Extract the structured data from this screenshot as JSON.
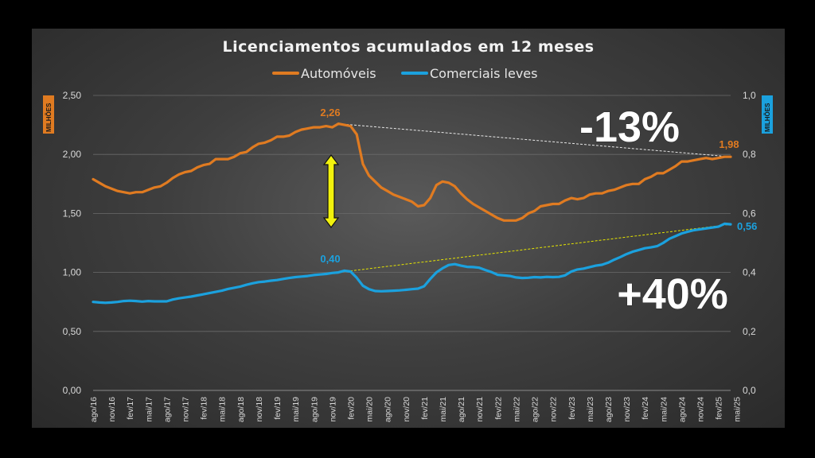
{
  "chart_data": {
    "type": "line",
    "title": "Licenciamentos acumulados em 12 meses",
    "left_axis": {
      "unit_label": "MILHÕES",
      "ylim": [
        0,
        2.5
      ],
      "ticks": [
        "0,00",
        "0,50",
        "1,00",
        "1,50",
        "2,00",
        "2,50"
      ],
      "color": "#E07B21"
    },
    "right_axis": {
      "unit_label": "MILHÕES",
      "ylim": [
        0,
        1.0
      ],
      "ticks": [
        "0,0",
        "0,2",
        "0,4",
        "0,6",
        "0,8",
        "1,0"
      ],
      "color": "#1BA1DE"
    },
    "x_tick_labels": [
      "ago/16",
      "nov/16",
      "fev/17",
      "mai/17",
      "ago/17",
      "nov/17",
      "fev/18",
      "mai/18",
      "ago/18",
      "nov/18",
      "fev/19",
      "mai/19",
      "ago/19",
      "nov/19",
      "fev/20",
      "mai/20",
      "ago/20",
      "nov/20",
      "fev/21",
      "mai/21",
      "ago/21",
      "nov/21",
      "fev/22",
      "mai/22",
      "ago/22",
      "nov/22",
      "fev/23",
      "mai/23",
      "ago/23",
      "nov/23",
      "fev/24",
      "mai/24",
      "ago/24",
      "nov/24",
      "fev/25",
      "mai/25"
    ],
    "series": [
      {
        "name": "Automóveis",
        "axis": "left",
        "color": "#E07B21",
        "values": [
          1.79,
          1.76,
          1.73,
          1.71,
          1.69,
          1.68,
          1.67,
          1.68,
          1.68,
          1.7,
          1.72,
          1.73,
          1.76,
          1.8,
          1.83,
          1.85,
          1.86,
          1.89,
          1.91,
          1.92,
          1.96,
          1.96,
          1.96,
          1.98,
          2.01,
          2.02,
          2.06,
          2.09,
          2.1,
          2.12,
          2.15,
          2.15,
          2.16,
          2.19,
          2.21,
          2.22,
          2.23,
          2.23,
          2.24,
          2.23,
          2.26,
          2.25,
          2.24,
          2.17,
          1.92,
          1.82,
          1.77,
          1.72,
          1.69,
          1.66,
          1.64,
          1.62,
          1.6,
          1.56,
          1.57,
          1.63,
          1.74,
          1.77,
          1.76,
          1.73,
          1.67,
          1.62,
          1.58,
          1.55,
          1.52,
          1.49,
          1.46,
          1.44,
          1.44,
          1.44,
          1.46,
          1.5,
          1.52,
          1.56,
          1.57,
          1.58,
          1.58,
          1.61,
          1.63,
          1.62,
          1.63,
          1.66,
          1.67,
          1.67,
          1.69,
          1.7,
          1.72,
          1.74,
          1.75,
          1.75,
          1.79,
          1.81,
          1.84,
          1.84,
          1.87,
          1.9,
          1.94,
          1.94,
          1.95,
          1.96,
          1.97,
          1.96,
          1.97,
          1.98,
          1.98
        ]
      },
      {
        "name": "Comerciais leves",
        "axis": "right",
        "color": "#1BA1DE",
        "values": [
          0.3,
          0.298,
          0.297,
          0.298,
          0.3,
          0.303,
          0.304,
          0.303,
          0.301,
          0.303,
          0.302,
          0.302,
          0.302,
          0.308,
          0.312,
          0.315,
          0.318,
          0.322,
          0.326,
          0.33,
          0.334,
          0.338,
          0.344,
          0.348,
          0.352,
          0.358,
          0.363,
          0.367,
          0.369,
          0.372,
          0.374,
          0.378,
          0.381,
          0.384,
          0.386,
          0.388,
          0.391,
          0.393,
          0.395,
          0.398,
          0.4,
          0.406,
          0.403,
          0.382,
          0.355,
          0.343,
          0.337,
          0.336,
          0.337,
          0.338,
          0.339,
          0.341,
          0.343,
          0.345,
          0.353,
          0.378,
          0.4,
          0.414,
          0.425,
          0.428,
          0.423,
          0.419,
          0.418,
          0.416,
          0.408,
          0.401,
          0.392,
          0.39,
          0.388,
          0.383,
          0.381,
          0.382,
          0.384,
          0.383,
          0.385,
          0.384,
          0.385,
          0.39,
          0.403,
          0.41,
          0.413,
          0.418,
          0.423,
          0.426,
          0.433,
          0.443,
          0.452,
          0.462,
          0.47,
          0.476,
          0.482,
          0.485,
          0.489,
          0.5,
          0.514,
          0.523,
          0.532,
          0.538,
          0.543,
          0.546,
          0.549,
          0.552,
          0.555,
          0.565,
          0.563
        ]
      }
    ],
    "annotations": {
      "auto_peak": "2,26",
      "auto_last": "1,98",
      "comm_start": "0,40",
      "comm_last": "0,56",
      "auto_change": "-13%",
      "comm_change": "+40%"
    },
    "legend_position": "top-center"
  },
  "colors": {
    "auto": "#E07B21",
    "comm": "#1BA1DE",
    "arrow": "#F2F20D"
  }
}
